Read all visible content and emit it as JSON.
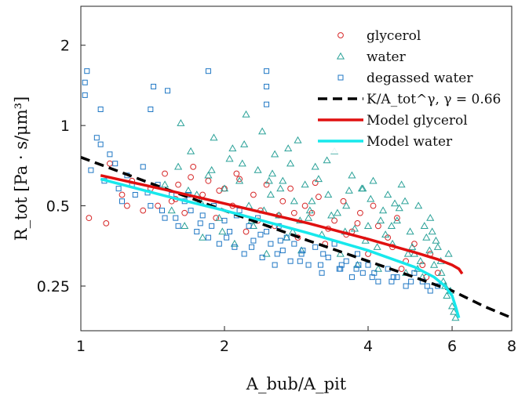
{
  "chart_data": {
    "type": "scatter",
    "title": "",
    "xlabel": "A_bub/A_pit",
    "ylabel": "R_tot [Pa · s/μm³]",
    "xscale": "log",
    "yscale": "log",
    "xlim": [
      1,
      8
    ],
    "ylim": [
      0.17,
      2.8
    ],
    "xticks": [
      1,
      2,
      4,
      6,
      8
    ],
    "yticks": [
      0.25,
      0.5,
      1,
      2
    ],
    "xtick_labels": [
      "1",
      "2",
      "4",
      "6",
      "8"
    ],
    "ytick_labels": [
      "0.25",
      "0.5",
      "1",
      "2"
    ],
    "grid": false,
    "legend_position": "top-right",
    "series": [
      {
        "name": "glycerol",
        "marker": "circle",
        "color": "#d62728",
        "x": [
          1.04,
          1.13,
          1.22,
          1.28,
          1.15,
          1.35,
          1.4,
          1.45,
          1.5,
          1.55,
          1.6,
          1.65,
          1.72,
          1.8,
          1.85,
          1.92,
          2.0,
          2.08,
          2.15,
          2.22,
          2.3,
          2.38,
          2.45,
          2.55,
          2.65,
          2.75,
          2.85,
          2.95,
          3.05,
          3.15,
          3.25,
          3.4,
          3.55,
          3.7,
          3.85,
          4.0,
          4.2,
          4.4,
          4.6,
          4.8,
          5.0,
          5.2,
          5.4,
          5.6,
          1.7,
          1.95,
          2.35,
          2.8,
          3.3,
          3.8,
          4.5,
          1.58,
          2.12,
          2.6,
          3.1,
          3.6,
          4.1,
          4.7,
          5.3,
          1.25
        ],
        "y": [
          0.45,
          0.43,
          0.55,
          0.62,
          0.72,
          0.48,
          0.58,
          0.5,
          0.66,
          0.52,
          0.6,
          0.47,
          0.7,
          0.55,
          0.62,
          0.45,
          0.58,
          0.5,
          0.63,
          0.4,
          0.55,
          0.48,
          0.6,
          0.42,
          0.52,
          0.58,
          0.38,
          0.5,
          0.47,
          0.54,
          0.36,
          0.44,
          0.52,
          0.4,
          0.47,
          0.33,
          0.42,
          0.38,
          0.45,
          0.31,
          0.36,
          0.3,
          0.33,
          0.28,
          0.64,
          0.57,
          0.44,
          0.47,
          0.41,
          0.43,
          0.35,
          0.53,
          0.66,
          0.46,
          0.61,
          0.39,
          0.5,
          0.29,
          0.27,
          0.5
        ]
      },
      {
        "name": "water",
        "marker": "triangle",
        "color": "#2aa198",
        "x": [
          1.5,
          1.55,
          1.6,
          1.65,
          1.7,
          1.75,
          1.8,
          1.85,
          1.9,
          1.95,
          2.0,
          2.05,
          2.1,
          2.15,
          2.2,
          2.25,
          2.3,
          2.35,
          2.4,
          2.45,
          2.5,
          2.55,
          2.6,
          2.65,
          2.7,
          2.75,
          2.8,
          2.85,
          2.9,
          2.95,
          3.0,
          3.1,
          3.2,
          3.3,
          3.4,
          3.5,
          3.6,
          3.7,
          3.8,
          3.9,
          4.0,
          4.1,
          4.2,
          4.3,
          4.4,
          4.5,
          4.6,
          4.7,
          4.8,
          4.9,
          5.0,
          5.1,
          5.2,
          5.3,
          5.4,
          5.5,
          5.6,
          5.7,
          5.8,
          5.9,
          6.0,
          6.1,
          1.62,
          1.78,
          1.98,
          2.18,
          2.42,
          2.62,
          2.88,
          3.15,
          3.45,
          3.75,
          4.05,
          4.35,
          4.65,
          4.95,
          5.25,
          5.55,
          5.85,
          6.05,
          1.68,
          1.88,
          2.08,
          2.28,
          2.52,
          2.78,
          3.05,
          3.35,
          3.65,
          3.95,
          4.25,
          4.55,
          4.85,
          5.15,
          5.45,
          5.75,
          2.22,
          2.48,
          2.72,
          3.02,
          3.28,
          3.58,
          3.88,
          4.18,
          4.48,
          4.78,
          5.08,
          5.38,
          5.68,
          5.95
        ],
        "y": [
          0.6,
          0.48,
          0.7,
          0.42,
          0.8,
          0.55,
          0.38,
          0.65,
          0.9,
          0.45,
          0.58,
          0.75,
          0.36,
          0.62,
          0.85,
          0.5,
          0.42,
          0.68,
          0.95,
          0.33,
          0.55,
          0.78,
          0.46,
          0.62,
          0.38,
          0.72,
          0.52,
          0.88,
          0.34,
          0.6,
          0.45,
          0.7,
          0.39,
          0.55,
          0.8,
          0.33,
          0.5,
          0.65,
          0.3,
          0.58,
          0.42,
          0.62,
          0.29,
          0.48,
          0.55,
          0.36,
          0.44,
          0.6,
          0.28,
          0.4,
          0.33,
          0.5,
          0.27,
          0.38,
          0.45,
          0.3,
          0.35,
          0.28,
          0.25,
          0.33,
          0.21,
          0.19,
          1.02,
          0.52,
          0.4,
          0.72,
          0.48,
          0.58,
          0.44,
          0.63,
          0.47,
          0.41,
          0.53,
          0.39,
          0.49,
          0.35,
          0.42,
          0.37,
          0.23,
          0.2,
          0.57,
          0.68,
          0.82,
          0.44,
          0.66,
          0.4,
          0.52,
          0.46,
          0.57,
          0.37,
          0.44,
          0.51,
          0.33,
          0.31,
          0.4,
          0.26,
          1.1,
          0.62,
          0.82,
          0.48,
          0.74,
          0.4,
          0.58,
          0.35,
          0.42,
          0.52,
          0.29,
          0.34,
          0.31,
          0.24
        ]
      },
      {
        "name": "degassed water",
        "marker": "square",
        "color": "#1f77c4",
        "x": [
          1.02,
          1.02,
          1.03,
          1.08,
          1.1,
          1.15,
          1.18,
          1.05,
          1.12,
          1.2,
          1.25,
          1.3,
          1.35,
          1.4,
          1.45,
          1.5,
          1.55,
          1.6,
          1.65,
          1.7,
          1.75,
          1.8,
          1.85,
          1.9,
          1.95,
          2.0,
          2.05,
          2.1,
          2.15,
          2.2,
          2.25,
          2.3,
          2.35,
          2.4,
          2.45,
          2.5,
          2.55,
          2.6,
          2.65,
          2.7,
          2.75,
          2.8,
          2.9,
          3.0,
          3.1,
          3.2,
          3.3,
          3.4,
          3.5,
          3.6,
          3.7,
          3.8,
          3.9,
          4.0,
          4.2,
          4.4,
          4.6,
          4.8,
          5.0,
          5.2,
          5.4,
          5.6,
          1.1,
          1.4,
          1.42,
          1.52,
          1.85,
          2.45,
          2.45,
          2.45,
          1.28,
          1.48,
          1.68,
          1.88,
          2.12,
          2.38,
          2.62,
          2.92,
          3.22,
          3.52,
          3.82,
          4.12,
          4.52,
          4.92,
          5.32,
          1.22,
          1.38,
          1.58,
          1.78,
          2.02,
          2.28,
          2.58,
          2.88,
          3.18,
          3.48,
          3.78,
          4.08,
          4.48
        ],
        "y": [
          1.45,
          1.3,
          1.6,
          0.9,
          0.85,
          0.78,
          0.72,
          0.68,
          0.62,
          0.58,
          0.65,
          0.55,
          0.7,
          0.5,
          0.6,
          0.45,
          0.55,
          0.42,
          0.52,
          0.48,
          0.4,
          0.46,
          0.38,
          0.5,
          0.36,
          0.44,
          0.4,
          0.35,
          0.48,
          0.33,
          0.42,
          0.37,
          0.45,
          0.32,
          0.4,
          0.36,
          0.3,
          0.42,
          0.34,
          0.38,
          0.31,
          0.36,
          0.33,
          0.3,
          0.35,
          0.28,
          0.32,
          0.36,
          0.29,
          0.31,
          0.27,
          0.33,
          0.28,
          0.3,
          0.26,
          0.29,
          0.27,
          0.25,
          0.28,
          0.26,
          0.24,
          0.25,
          1.15,
          1.15,
          1.4,
          1.35,
          1.6,
          1.6,
          1.4,
          1.2,
          0.6,
          0.48,
          0.55,
          0.42,
          0.46,
          0.39,
          0.37,
          0.34,
          0.33,
          0.3,
          0.3,
          0.28,
          0.27,
          0.26,
          0.25,
          0.52,
          0.56,
          0.45,
          0.43,
          0.38,
          0.35,
          0.33,
          0.31,
          0.3,
          0.29,
          0.29,
          0.27,
          0.26
        ]
      },
      {
        "name": "K/A_tot^γ, γ = 0.66",
        "type": "line",
        "style": "dashed",
        "color": "#000000",
        "x": [
          1.0,
          1.5,
          2.0,
          3.0,
          4.0,
          5.0,
          6.0,
          7.0,
          8.0
        ],
        "y": [
          0.76,
          0.58,
          0.48,
          0.37,
          0.31,
          0.27,
          0.24,
          0.21,
          0.19
        ]
      },
      {
        "name": "Model glycerol",
        "type": "line",
        "style": "solid",
        "color": "#e01010",
        "x": [
          1.1,
          1.5,
          2.0,
          3.0,
          4.0,
          5.0,
          5.6,
          6.0,
          6.2,
          6.3
        ],
        "y": [
          0.65,
          0.575,
          0.51,
          0.43,
          0.375,
          0.335,
          0.315,
          0.3,
          0.29,
          0.278
        ]
      },
      {
        "name": "Model water",
        "type": "line",
        "style": "solid",
        "color": "#17e8ec",
        "x": [
          1.1,
          1.5,
          2.0,
          3.0,
          4.0,
          5.0,
          5.5,
          5.8,
          6.0,
          6.1,
          6.2
        ],
        "y": [
          0.63,
          0.545,
          0.48,
          0.395,
          0.34,
          0.295,
          0.27,
          0.25,
          0.23,
          0.21,
          0.19
        ]
      }
    ]
  }
}
